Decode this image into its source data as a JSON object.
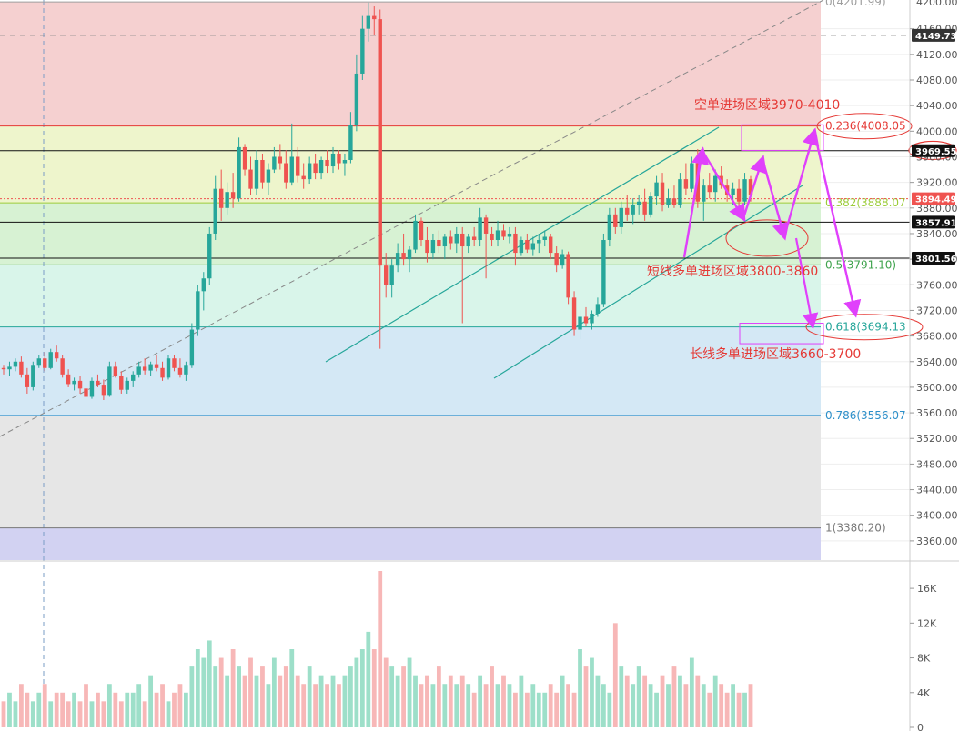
{
  "chart_data": {
    "type": "candlestick",
    "price_axis": {
      "ylim": [
        3330,
        4205
      ],
      "ticks": [
        3360,
        3400,
        3440,
        3480,
        3520,
        3560,
        3600,
        3640,
        3680,
        3720,
        3760,
        3800,
        3840,
        3880,
        3920,
        3960,
        4000,
        4040,
        4080,
        4120,
        4160
      ],
      "tick_labels": [
        "3360.00",
        "3400.00",
        "3440.00",
        "3480.00",
        "3520.00",
        "3560.00",
        "3600.00",
        "3640.00",
        "3680.00",
        "3720.00",
        "3760.00",
        "3800.00",
        "3840.00",
        "3880.00",
        "3920.00",
        "3960.00",
        "4000.00",
        "4040.00",
        "4080.00",
        "4120.00",
        "4160.00"
      ],
      "top_partial_label": "4200.00"
    },
    "volume_axis": {
      "ylim": [
        0,
        18000
      ],
      "ticks": [
        0,
        4000,
        8000,
        12000,
        16000
      ],
      "tick_labels": [
        "0",
        "4K",
        "8K",
        "12K",
        "16K"
      ]
    },
    "fib_levels": [
      {
        "ratio": "0",
        "price": 4201.99,
        "label": "0(4201.99)",
        "color": "#9e9e9e",
        "zone_color": "#f5d0d0"
      },
      {
        "ratio": "0.236",
        "price": 4008.05,
        "label": "0.236(4008.05",
        "color": "#e53935",
        "zone_color": "#eef5cc"
      },
      {
        "ratio": "0.382",
        "price": 3888.07,
        "label": "0.382(3888.07",
        "color": "#9ccc3a",
        "zone_color": "#d7f2d3"
      },
      {
        "ratio": "0.5",
        "price": 3791.1,
        "label": "0.5(3791.10)",
        "color": "#3fa34d",
        "zone_color": "#d9f5ea"
      },
      {
        "ratio": "0.618",
        "price": 3694.13,
        "label": "0.618(3694.13",
        "color": "#26a69a",
        "zone_color": "#d4e8f5"
      },
      {
        "ratio": "0.786",
        "price": 3556.07,
        "label": "0.786(3556.07",
        "color": "#2d8fc9",
        "zone_color": "#e6e6e6"
      },
      {
        "ratio": "1",
        "price": 3380.2,
        "label": "1(3380.20)",
        "color": "#777777",
        "zone_color": "#d2d2f2"
      }
    ],
    "horizontal_lines": [
      {
        "price": 4149.73,
        "label": "4149.73",
        "style": "dashed",
        "color": "#888888",
        "badge_color": "#333333"
      },
      {
        "price": 3969.55,
        "label": "3969.55",
        "style": "solid",
        "color": "#111111",
        "badge_color": "#111111"
      },
      {
        "price": 3894.49,
        "label": "3894.49",
        "style": "dotted",
        "color": "#ef5350",
        "badge_color": "#ef5350"
      },
      {
        "price": 3857.91,
        "label": "3857.91",
        "style": "solid",
        "color": "#111111",
        "badge_color": "#111111"
      },
      {
        "price": 3801.56,
        "label": "3801.56",
        "style": "solid",
        "color": "#111111",
        "badge_color": "#111111"
      }
    ],
    "annotations": [
      {
        "text": "空单进场区域3970-4010",
        "zone_low": 3970,
        "zone_high": 4010
      },
      {
        "text": "短线多单进场区域3800-3860",
        "zone_low": 3800,
        "zone_high": 3860
      },
      {
        "text": "长线多单进场区域3660-3700",
        "zone_low": 3660,
        "zone_high": 3700
      }
    ],
    "candles": [
      [
        3630,
        3635,
        3620,
        3628
      ],
      [
        3628,
        3640,
        3618,
        3632
      ],
      [
        3632,
        3645,
        3625,
        3640
      ],
      [
        3640,
        3648,
        3615,
        3620
      ],
      [
        3620,
        3630,
        3590,
        3600
      ],
      [
        3600,
        3640,
        3595,
        3635
      ],
      [
        3635,
        3650,
        3630,
        3645
      ],
      [
        3645,
        3655,
        3625,
        3630
      ],
      [
        3630,
        3660,
        3628,
        3655
      ],
      [
        3655,
        3665,
        3640,
        3645
      ],
      [
        3645,
        3650,
        3615,
        3620
      ],
      [
        3620,
        3628,
        3600,
        3605
      ],
      [
        3605,
        3615,
        3595,
        3610
      ],
      [
        3610,
        3618,
        3590,
        3598
      ],
      [
        3598,
        3610,
        3575,
        3585
      ],
      [
        3585,
        3615,
        3582,
        3610
      ],
      [
        3610,
        3620,
        3600,
        3604
      ],
      [
        3604,
        3612,
        3580,
        3588
      ],
      [
        3588,
        3640,
        3585,
        3632
      ],
      [
        3632,
        3640,
        3615,
        3618
      ],
      [
        3618,
        3625,
        3590,
        3596
      ],
      [
        3596,
        3615,
        3590,
        3610
      ],
      [
        3610,
        3625,
        3600,
        3620
      ],
      [
        3620,
        3640,
        3615,
        3632
      ],
      [
        3632,
        3645,
        3620,
        3626
      ],
      [
        3626,
        3640,
        3618,
        3636
      ],
      [
        3636,
        3650,
        3625,
        3630
      ],
      [
        3630,
        3640,
        3610,
        3615
      ],
      [
        3615,
        3650,
        3612,
        3645
      ],
      [
        3645,
        3650,
        3625,
        3630
      ],
      [
        3630,
        3645,
        3615,
        3620
      ],
      [
        3620,
        3640,
        3610,
        3635
      ],
      [
        3635,
        3700,
        3630,
        3690
      ],
      [
        3690,
        3760,
        3680,
        3750
      ],
      [
        3750,
        3780,
        3720,
        3770
      ],
      [
        3770,
        3850,
        3760,
        3840
      ],
      [
        3840,
        3930,
        3830,
        3910
      ],
      [
        3910,
        3940,
        3860,
        3880
      ],
      [
        3880,
        3920,
        3870,
        3905
      ],
      [
        3905,
        3935,
        3880,
        3895
      ],
      [
        3895,
        3990,
        3890,
        3975
      ],
      [
        3975,
        3980,
        3930,
        3940
      ],
      [
        3940,
        3960,
        3900,
        3910
      ],
      [
        3910,
        3970,
        3900,
        3955
      ],
      [
        3955,
        3965,
        3910,
        3920
      ],
      [
        3920,
        3950,
        3900,
        3940
      ],
      [
        3940,
        3975,
        3935,
        3960
      ],
      [
        3960,
        3980,
        3940,
        3950
      ],
      [
        3950,
        3970,
        3910,
        3920
      ],
      [
        3920,
        4012,
        3915,
        3960
      ],
      [
        3960,
        3975,
        3920,
        3930
      ],
      [
        3930,
        3950,
        3910,
        3925
      ],
      [
        3925,
        3960,
        3918,
        3950
      ],
      [
        3950,
        3965,
        3925,
        3935
      ],
      [
        3935,
        3960,
        3925,
        3955
      ],
      [
        3955,
        3970,
        3935,
        3945
      ],
      [
        3945,
        3975,
        3935,
        3965
      ],
      [
        3965,
        3970,
        3940,
        3950
      ],
      [
        3950,
        3965,
        3930,
        3955
      ],
      [
        3955,
        4030,
        3950,
        4010
      ],
      [
        4010,
        4120,
        4000,
        4090
      ],
      [
        4090,
        4180,
        4080,
        4160
      ],
      [
        4160,
        4201,
        4140,
        4180
      ],
      [
        4180,
        4195,
        4150,
        4175
      ],
      [
        4175,
        4190,
        3660,
        3790
      ],
      [
        3790,
        3810,
        3740,
        3760
      ],
      [
        3760,
        3800,
        3740,
        3790
      ],
      [
        3790,
        3825,
        3780,
        3810
      ],
      [
        3810,
        3840,
        3790,
        3800
      ],
      [
        3800,
        3820,
        3780,
        3815
      ],
      [
        3815,
        3870,
        3810,
        3860
      ],
      [
        3860,
        3865,
        3820,
        3830
      ],
      [
        3830,
        3850,
        3795,
        3810
      ],
      [
        3810,
        3840,
        3800,
        3830
      ],
      [
        3830,
        3845,
        3810,
        3820
      ],
      [
        3820,
        3840,
        3800,
        3835
      ],
      [
        3835,
        3845,
        3815,
        3825
      ],
      [
        3825,
        3850,
        3810,
        3840
      ],
      [
        3840,
        3850,
        3700,
        3820
      ],
      [
        3820,
        3840,
        3810,
        3835
      ],
      [
        3835,
        3850,
        3820,
        3830
      ],
      [
        3830,
        3880,
        3820,
        3865
      ],
      [
        3865,
        3870,
        3770,
        3840
      ],
      [
        3840,
        3850,
        3820,
        3830
      ],
      [
        3830,
        3860,
        3820,
        3845
      ],
      [
        3845,
        3855,
        3830,
        3835
      ],
      [
        3835,
        3850,
        3825,
        3840
      ],
      [
        3840,
        3850,
        3790,
        3810
      ],
      [
        3810,
        3835,
        3805,
        3830
      ],
      [
        3830,
        3840,
        3810,
        3815
      ],
      [
        3815,
        3835,
        3805,
        3825
      ],
      [
        3825,
        3840,
        3810,
        3830
      ],
      [
        3830,
        3845,
        3820,
        3835
      ],
      [
        3835,
        3840,
        3800,
        3810
      ],
      [
        3810,
        3820,
        3780,
        3790
      ],
      [
        3790,
        3815,
        3785,
        3808
      ],
      [
        3808,
        3812,
        3730,
        3740
      ],
      [
        3740,
        3750,
        3680,
        3690
      ],
      [
        3690,
        3720,
        3675,
        3710
      ],
      [
        3710,
        3725,
        3695,
        3700
      ],
      [
        3700,
        3720,
        3690,
        3715
      ],
      [
        3715,
        3740,
        3710,
        3730
      ],
      [
        3730,
        3840,
        3725,
        3830
      ],
      [
        3830,
        3880,
        3820,
        3870
      ],
      [
        3870,
        3880,
        3840,
        3850
      ],
      [
        3850,
        3890,
        3840,
        3880
      ],
      [
        3880,
        3900,
        3860,
        3870
      ],
      [
        3870,
        3895,
        3855,
        3885
      ],
      [
        3885,
        3900,
        3870,
        3890
      ],
      [
        3890,
        3910,
        3860,
        3870
      ],
      [
        3870,
        3905,
        3865,
        3898
      ],
      [
        3898,
        3930,
        3885,
        3920
      ],
      [
        3920,
        3935,
        3875,
        3885
      ],
      [
        3885,
        3910,
        3880,
        3895
      ],
      [
        3895,
        3915,
        3880,
        3885
      ],
      [
        3885,
        3935,
        3880,
        3925
      ],
      [
        3925,
        3950,
        3900,
        3910
      ],
      [
        3910,
        3960,
        3905,
        3950
      ],
      [
        3950,
        3972,
        3880,
        3890
      ],
      [
        3890,
        3925,
        3860,
        3915
      ],
      [
        3915,
        3935,
        3895,
        3905
      ],
      [
        3905,
        3940,
        3890,
        3930
      ],
      [
        3930,
        3945,
        3910,
        3915
      ],
      [
        3915,
        3925,
        3890,
        3900
      ],
      [
        3900,
        3920,
        3885,
        3910
      ],
      [
        3910,
        3925,
        3880,
        3890
      ],
      [
        3890,
        3935,
        3885,
        3925
      ],
      [
        3925,
        3930,
        3890,
        3900
      ]
    ],
    "volumes": [
      3,
      4,
      3,
      5,
      4,
      3,
      4,
      5,
      3,
      4,
      4,
      3,
      4,
      3,
      5,
      3,
      4,
      3,
      5,
      4,
      3,
      4,
      4,
      5,
      3,
      6,
      4,
      5,
      3,
      4,
      5,
      4,
      7,
      9,
      8,
      10,
      7,
      8,
      6,
      9,
      7,
      6,
      8,
      6,
      7,
      5,
      8,
      6,
      7,
      9,
      6,
      5,
      7,
      5,
      6,
      5,
      6,
      5,
      6,
      7,
      8,
      9,
      11,
      9,
      18,
      8,
      7,
      6,
      7,
      8,
      6,
      5,
      6,
      5,
      7,
      5,
      6,
      5,
      6,
      5,
      4,
      6,
      5,
      7,
      5,
      6,
      5,
      4,
      6,
      4,
      5,
      4,
      4,
      5,
      4,
      6,
      5,
      4,
      9,
      7,
      8,
      6,
      5,
      4,
      12,
      7,
      6,
      5,
      7,
      6,
      5,
      4,
      6,
      5,
      7,
      6,
      5,
      8,
      6,
      5,
      4,
      6,
      5,
      4,
      5,
      4,
      4,
      5
    ],
    "volume_up_color": "#9ddfc9",
    "volume_down_color": "#f7b7b7",
    "candle_up_color": "#26a69a",
    "candle_down_color": "#ef5350",
    "arrow_color": "#e040fb",
    "channel_color": "#26a69a"
  }
}
